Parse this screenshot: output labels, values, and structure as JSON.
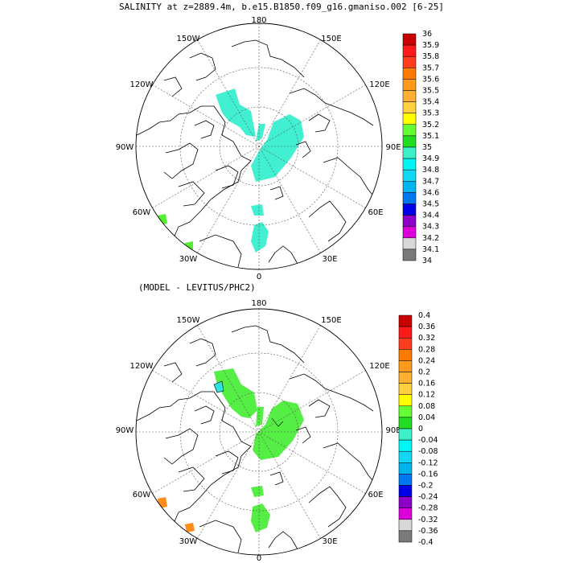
{
  "figure": {
    "title_top": "SALINITY at z=2889.4m, b.e15.B1850.f09_g16.gmaniso.002 [6-25]",
    "title_bottom": "(MODEL - LEVITUS/PHC2)"
  },
  "lon_labels": {
    "top": "180",
    "tl": "150W",
    "tr": "150E",
    "ul": "120W",
    "ur": "120E",
    "ml": "90W",
    "mr": "90E",
    "ll": "60W",
    "lr": "60E",
    "bl": "30W",
    "br": "30E",
    "bottom": "0"
  },
  "colorbar_top": {
    "labels": [
      "36",
      "35.9",
      "35.8",
      "35.7",
      "35.6",
      "35.5",
      "35.4",
      "35.3",
      "35.2",
      "35.1",
      "35",
      "34.9",
      "34.8",
      "34.7",
      "34.6",
      "34.5",
      "34.4",
      "34.3",
      "34.2",
      "34.1",
      "34"
    ],
    "colors": [
      "#c80000",
      "#ff1a1a",
      "#ff3c1e",
      "#ff7a00",
      "#ff9a1e",
      "#ffb030",
      "#ffd040",
      "#ffff00",
      "#66ff33",
      "#22dd22",
      "#3cf0c8",
      "#00f5f5",
      "#12d8f5",
      "#00b4f0",
      "#0078f0",
      "#0000e6",
      "#8c00c8",
      "#dc00dc",
      "#d8d8d8",
      "#7a7a7a"
    ]
  },
  "colorbar_bottom": {
    "labels": [
      "0.4",
      "0.36",
      "0.32",
      "0.28",
      "0.24",
      "0.2",
      "0.16",
      "0.12",
      "0.08",
      "0.04",
      "0",
      "-0.04",
      "-0.08",
      "-0.12",
      "-0.16",
      "-0.2",
      "-0.24",
      "-0.28",
      "-0.32",
      "-0.36",
      "-0.4"
    ],
    "colors": [
      "#c80000",
      "#ff1a1a",
      "#ff3c1e",
      "#ff7a00",
      "#ff9a1e",
      "#ffb030",
      "#ffd040",
      "#ffff00",
      "#66ff33",
      "#22dd22",
      "#3cf0c8",
      "#00f5f5",
      "#12d8f5",
      "#00b4f0",
      "#0078f0",
      "#0000e6",
      "#8c00c8",
      "#dc00dc",
      "#d8d8d8",
      "#7a7a7a"
    ]
  },
  "fill_colors": {
    "top_main": "#40f0d0",
    "top_sw": "#55ee33",
    "bottom_main": "#55ee44",
    "bottom_sw": "#ff8c1a",
    "bottom_small": "#2ee0e0"
  }
}
